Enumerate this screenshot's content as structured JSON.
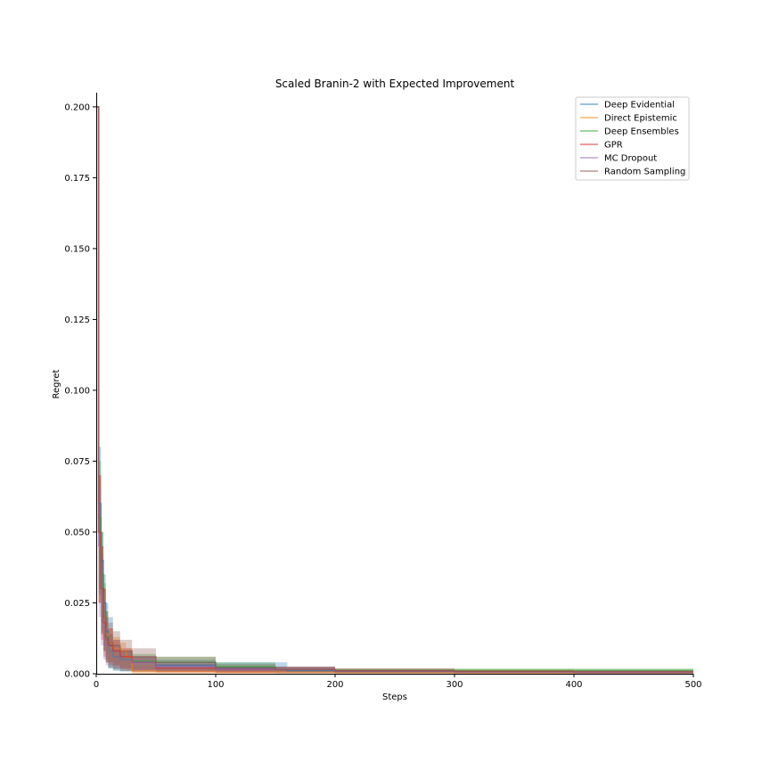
{
  "chart_data": {
    "type": "line",
    "title": "Scaled Branin-2 with Expected Improvement",
    "xlabel": "Steps",
    "ylabel": "Regret",
    "xlim": [
      0,
      500
    ],
    "ylim": [
      0,
      0.205
    ],
    "xticks": [
      0,
      100,
      200,
      300,
      400,
      500
    ],
    "xtick_labels": [
      "0",
      "100",
      "200",
      "300",
      "400",
      "500"
    ],
    "yticks": [
      0,
      0.025,
      0.05,
      0.075,
      0.1,
      0.125,
      0.15,
      0.175,
      0.2
    ],
    "ytick_labels": [
      "0.000",
      "0.025",
      "0.050",
      "0.075",
      "0.100",
      "0.125",
      "0.150",
      "0.175",
      "0.200"
    ],
    "grid": false,
    "legend_position": "top-right",
    "series": [
      {
        "name": "Deep Evidential",
        "color": "#1f77b4",
        "x": [
          0,
          2,
          4,
          6,
          8,
          10,
          14,
          20,
          30,
          50,
          100,
          150,
          160,
          200,
          300,
          400,
          500
        ],
        "y": [
          0.2,
          0.06,
          0.04,
          0.025,
          0.015,
          0.01,
          0.006,
          0.005,
          0.004,
          0.003,
          0.002,
          0.0015,
          0.001,
          0.0005,
          0.0004,
          0.0003,
          0.0003
        ],
        "lower": [
          0.2,
          0.03,
          0.018,
          0.01,
          0.004,
          0.002,
          0.001,
          0.0008,
          0.0006,
          0.0005,
          0.0003,
          0.0002,
          0.0002,
          0.0001,
          0.0001,
          0.0001,
          0.0001
        ],
        "upper": [
          0.2,
          0.08,
          0.05,
          0.035,
          0.025,
          0.02,
          0.012,
          0.008,
          0.006,
          0.005,
          0.004,
          0.004,
          0.002,
          0.0012,
          0.0009,
          0.0008,
          0.0008
        ]
      },
      {
        "name": "Direct Epistemic",
        "color": "#ff7f0e",
        "x": [
          0,
          2,
          4,
          6,
          8,
          10,
          14,
          20,
          25,
          30,
          50,
          100,
          200,
          300,
          400,
          500
        ],
        "y": [
          0.2,
          0.05,
          0.03,
          0.02,
          0.014,
          0.011,
          0.009,
          0.008,
          0.006,
          0.001,
          0.0008,
          0.0006,
          0.0004,
          0.0003,
          0.0003,
          0.0003
        ],
        "lower": [
          0.2,
          0.025,
          0.014,
          0.008,
          0.005,
          0.004,
          0.003,
          0.002,
          0.001,
          0.0,
          0.0,
          0.0,
          0.0,
          0.0,
          0.0,
          0.0
        ],
        "upper": [
          0.2,
          0.07,
          0.045,
          0.03,
          0.02,
          0.016,
          0.013,
          0.011,
          0.009,
          0.003,
          0.002,
          0.0015,
          0.001,
          0.001,
          0.001,
          0.001
        ]
      },
      {
        "name": "Deep Ensembles",
        "color": "#2ca02c",
        "x": [
          0,
          2,
          4,
          6,
          8,
          10,
          14,
          20,
          30,
          50,
          100,
          150,
          200,
          300,
          400,
          500
        ],
        "y": [
          0.2,
          0.055,
          0.035,
          0.022,
          0.013,
          0.008,
          0.006,
          0.005,
          0.0045,
          0.004,
          0.0025,
          0.0015,
          0.0012,
          0.0012,
          0.0012,
          0.0012
        ],
        "lower": [
          0.2,
          0.028,
          0.015,
          0.008,
          0.004,
          0.002,
          0.0015,
          0.001,
          0.001,
          0.001,
          0.0008,
          0.0006,
          0.0005,
          0.0005,
          0.0005,
          0.0005
        ],
        "upper": [
          0.2,
          0.075,
          0.05,
          0.032,
          0.022,
          0.014,
          0.01,
          0.008,
          0.007,
          0.006,
          0.004,
          0.0025,
          0.0019,
          0.0019,
          0.0019,
          0.0019
        ]
      },
      {
        "name": "GPR",
        "color": "#d62728",
        "x": [
          0,
          2,
          4,
          6,
          8,
          10,
          14,
          20,
          30,
          50,
          100,
          200,
          300,
          400,
          500
        ],
        "y": [
          0.2,
          0.05,
          0.03,
          0.018,
          0.012,
          0.01,
          0.008,
          0.006,
          0.004,
          0.002,
          0.0015,
          0.001,
          0.0008,
          0.0006,
          0.0006
        ],
        "lower": [
          0.2,
          0.025,
          0.012,
          0.006,
          0.004,
          0.003,
          0.002,
          0.0015,
          0.001,
          0.0006,
          0.0004,
          0.0003,
          0.0002,
          0.0002,
          0.0002
        ],
        "upper": [
          0.2,
          0.07,
          0.045,
          0.03,
          0.02,
          0.016,
          0.012,
          0.009,
          0.006,
          0.0035,
          0.0025,
          0.0018,
          0.0014,
          0.0012,
          0.0012
        ]
      },
      {
        "name": "MC Dropout",
        "color": "#9467bd",
        "x": [
          0,
          2,
          4,
          6,
          8,
          10,
          14,
          20,
          30,
          50,
          100,
          200,
          300,
          400,
          500
        ],
        "y": [
          0.2,
          0.045,
          0.028,
          0.016,
          0.01,
          0.008,
          0.006,
          0.005,
          0.004,
          0.0025,
          0.0015,
          0.0008,
          0.0006,
          0.0005,
          0.0005
        ],
        "lower": [
          0.2,
          0.02,
          0.01,
          0.005,
          0.003,
          0.002,
          0.0015,
          0.001,
          0.0008,
          0.0005,
          0.0003,
          0.0002,
          0.0001,
          0.0001,
          0.0001
        ],
        "upper": [
          0.2,
          0.065,
          0.042,
          0.026,
          0.018,
          0.014,
          0.01,
          0.008,
          0.006,
          0.004,
          0.0025,
          0.0014,
          0.0011,
          0.0009,
          0.0009
        ]
      },
      {
        "name": "Random Sampling",
        "color": "#8c564b",
        "x": [
          0,
          2,
          4,
          6,
          8,
          10,
          14,
          20,
          30,
          50,
          100,
          150,
          200,
          300,
          400,
          500
        ],
        "y": [
          0.2,
          0.05,
          0.03,
          0.02,
          0.013,
          0.011,
          0.01,
          0.008,
          0.006,
          0.004,
          0.002,
          0.0015,
          0.001,
          0.0008,
          0.0007,
          0.0007
        ],
        "lower": [
          0.2,
          0.025,
          0.014,
          0.008,
          0.005,
          0.004,
          0.003,
          0.002,
          0.0015,
          0.001,
          0.0006,
          0.0005,
          0.0004,
          0.0003,
          0.0003,
          0.0003
        ],
        "upper": [
          0.2,
          0.07,
          0.045,
          0.03,
          0.022,
          0.018,
          0.015,
          0.012,
          0.009,
          0.006,
          0.0035,
          0.0025,
          0.0018,
          0.0014,
          0.0012,
          0.0012
        ]
      }
    ]
  }
}
